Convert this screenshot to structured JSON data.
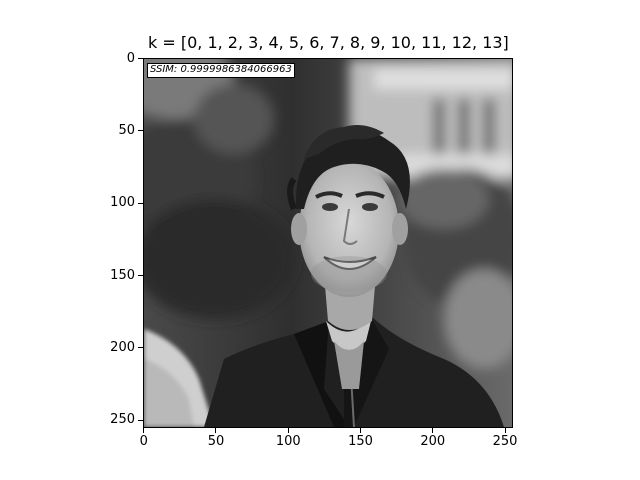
{
  "figure": {
    "title": "k = [0, 1, 2, 3, 4, 5, 6, 7, 8, 9, 10, 11, 12, 13]",
    "annotation": "SSIM: 0.9999986384066963",
    "x_ticks": [
      "0",
      "50",
      "100",
      "150",
      "200",
      "250"
    ],
    "y_ticks": [
      "0",
      "50",
      "100",
      "150",
      "200",
      "250"
    ],
    "x_tick_values": [
      0,
      50,
      100,
      150,
      200,
      250
    ],
    "y_tick_values": [
      0,
      50,
      100,
      150,
      200,
      250
    ],
    "image_extent": [
      -0.5,
      255.5
    ],
    "colors": {
      "background": "#ffffff",
      "axes": "#000000"
    }
  }
}
